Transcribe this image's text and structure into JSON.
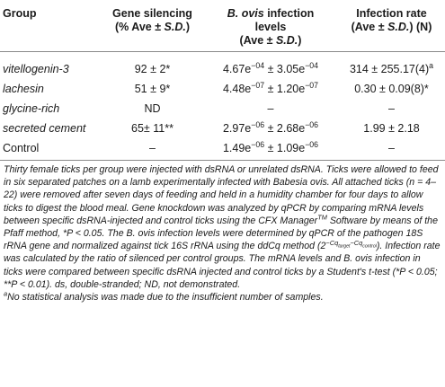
{
  "header": {
    "group": "Group",
    "gene_silencing_line1": "Gene silencing",
    "gene_silencing_line2_pre": "(% Ave ± ",
    "gene_silencing_line2_em": "S.D.",
    "gene_silencing_line2_post": ")",
    "infection_levels_em": "B. ovis",
    "infection_levels_line1_post": " infection",
    "infection_levels_line2": "levels",
    "infection_levels_line3_pre": "(Ave ± ",
    "infection_levels_line3_em": "S.D.",
    "infection_levels_line3_post": ")",
    "infection_rate_line1": "Infection rate",
    "infection_rate_line2_pre": "(Ave ± ",
    "infection_rate_line2_em": "S.D.",
    "infection_rate_line2_post": ") (N)"
  },
  "rows": [
    {
      "group": "vitellogenin-3",
      "silencing": "92 ± 2*",
      "levels": "4.67e",
      "levels_exp": "−04",
      "levels_sd": " ± 3.05e",
      "levels_sd_exp": "−04",
      "rate": "314 ± 255.17(4)",
      "rate_sup": "a"
    },
    {
      "group": "lachesin",
      "silencing": "51 ± 9*",
      "levels": "4.48e",
      "levels_exp": "−07",
      "levels_sd": " ± 1.20e",
      "levels_sd_exp": "−07",
      "rate": "0.30 ± 0.09(8)*",
      "rate_sup": ""
    },
    {
      "group": "glycine-rich",
      "silencing": "ND",
      "levels": "–",
      "levels_exp": "",
      "levels_sd": "",
      "levels_sd_exp": "",
      "rate": "–",
      "rate_sup": ""
    },
    {
      "group": "secreted cement",
      "silencing": "65± 11**",
      "levels": "2.97e",
      "levels_exp": "−06",
      "levels_sd": " ± 2.68e",
      "levels_sd_exp": "−06",
      "rate": "1.99 ± 2.18",
      "rate_sup": ""
    },
    {
      "group": "Control",
      "silencing": "–",
      "levels": "1.49e",
      "levels_exp": "−06",
      "levels_sd": " ± 1.09e",
      "levels_sd_exp": "−06",
      "rate": "–",
      "rate_sup": ""
    }
  ],
  "note": {
    "p1": "Thirty female ticks per group were injected with dsRNA or unrelated dsRNA. Ticks were allowed to feed in six separated patches on a lamb experimentally infected with Babesia ovis. All attached ticks (n = 4–22) were removed after seven days of feeding and held in a humidity chamber for four days to allow ticks to digest the blood meal. Gene knockdown was analyzed by qPCR by comparing mRNA levels between specific dsRNA-injected and control ticks using the CFX Manager",
    "tm": "TM",
    "p2": " Software by means of the Pfaff method, *P < 0.05. The B. ovis infection levels were determined by qPCR of the pathogen 18S rRNA gene and normalized against tick 16S rRNA using the ddCq method (2",
    "formula": "−Cq",
    "formula_sub1": "target",
    "formula_mid": "−Cq",
    "formula_sub2": "control",
    "p3": "). Infection rate was calculated by the ratio of silenced per control groups. The mRNA levels and B. ovis infection in ticks were compared between specific dsRNA injected and control ticks by a Student's t-test (*P < 0.05; **P < 0.01). ds, double-stranded; ND, not demonstrated.",
    "footnote_mark": "a",
    "footnote": "No statistical analysis was made due to the insufficient number of samples."
  }
}
